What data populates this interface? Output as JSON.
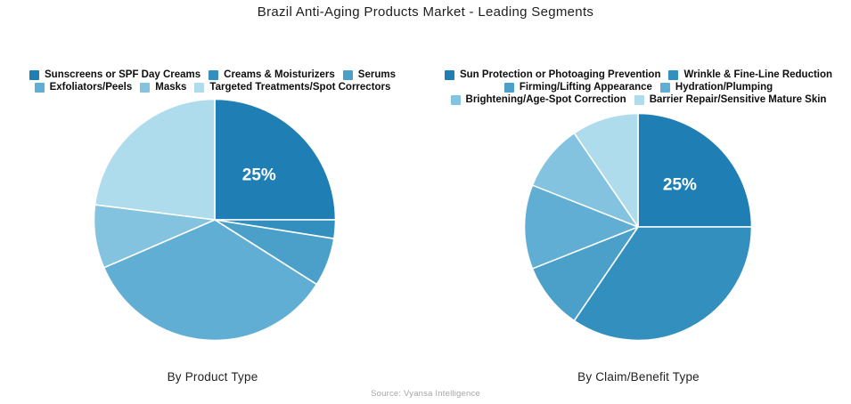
{
  "page_title": "Brazil Anti-Aging Products Market - Leading Segments",
  "source_note": "Source: Vyansa Intelligence",
  "palette": [
    "#1F7EB4",
    "#3390BE",
    "#4BA0CA",
    "#60AED4",
    "#84C3DF",
    "#AEDCEC"
  ],
  "chart_data": [
    {
      "type": "pie",
      "axis_label": "By Product Type",
      "labels": [
        "Sunscreens or SPF Day Creams",
        "Creams & Moisturizers",
        "Serums",
        "Exfoliators/Peels",
        "Masks",
        "Targeted Treatments/Spot Correctors"
      ],
      "values": [
        25,
        2.5,
        6.5,
        34.5,
        8.5,
        23
      ],
      "slice_labels": [
        "25%",
        "",
        "",
        "",
        "",
        ""
      ],
      "colors": [
        "#1F7EB4",
        "#3390BE",
        "#4BA0CA",
        "#60AED4",
        "#84C3DF",
        "#AEDCEC"
      ],
      "legend_rows": [
        [
          0,
          1,
          2
        ],
        [
          3,
          4,
          5
        ]
      ],
      "legend_position": "top",
      "start_angle_deg": 0,
      "direction": "clockwise"
    },
    {
      "type": "pie",
      "axis_label": "By Claim/Benefit Type",
      "labels": [
        "Sun Protection or Photoaging Prevention",
        "Wrinkle & Fine-Line Reduction",
        "Firming/Lifting Appearance",
        "Hydration/Plumping",
        "Brightening/Age-Spot Correction",
        "Barrier Repair/Sensitive Mature Skin"
      ],
      "values": [
        25,
        34.5,
        9.5,
        12,
        9.5,
        9.5
      ],
      "slice_labels": [
        "25%",
        "",
        "",
        "",
        "",
        ""
      ],
      "colors": [
        "#1F7EB4",
        "#3390BE",
        "#4BA0CA",
        "#60AED4",
        "#84C3DF",
        "#AEDCEC"
      ],
      "legend_rows": [
        [
          0,
          1
        ],
        [
          2,
          3
        ],
        [
          4,
          5
        ]
      ],
      "legend_position": "top",
      "start_angle_deg": 0,
      "direction": "clockwise"
    }
  ]
}
